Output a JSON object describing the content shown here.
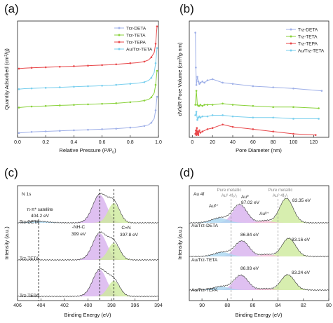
{
  "colors": {
    "deta": "#9fb0e8",
    "teta": "#8ad23c",
    "tepa": "#e8474a",
    "au_teta": "#79cfee",
    "xps_purple": "#d7b0ee",
    "xps_green": "#cdea9b",
    "xps_blue": "#a9d6f0",
    "xps_pink": "#f1b6d2",
    "xps_env": "#333333"
  },
  "chart_data": [
    {
      "id": "a",
      "panel_label": "(a)",
      "type": "line",
      "xlabel": "Relative Pressure (P/P",
      "xlabel_sub": "0",
      "xlabel_end": ")",
      "ylabel": "Quantity Adsorbed (cm",
      "ylabel_sup": "3",
      "ylabel_end": "/g)",
      "xlim": [
        0.0,
        1.0
      ],
      "x_ticks": [
        "0.0",
        "0.2",
        "0.4",
        "0.6",
        "0.8",
        "1.0"
      ],
      "y_ticks_shown": false,
      "legend_position": "top-right",
      "series": [
        {
          "name": "Trz-DETA",
          "color_key": "deta",
          "offset": 0,
          "x": [
            0.01,
            0.05,
            0.1,
            0.15,
            0.2,
            0.25,
            0.3,
            0.35,
            0.4,
            0.45,
            0.5,
            0.55,
            0.6,
            0.65,
            0.7,
            0.75,
            0.8,
            0.85,
            0.9,
            0.93,
            0.95,
            0.97,
            0.98,
            0.99
          ],
          "y": [
            3,
            4,
            5,
            5.5,
            6,
            6.5,
            7,
            7.5,
            8,
            8.5,
            9,
            9.5,
            10,
            10.5,
            11,
            12,
            13,
            14,
            16,
            18,
            22,
            30,
            45,
            70
          ]
        },
        {
          "name": "Trz-TETA",
          "color_key": "teta",
          "offset": 0,
          "x": [
            0.01,
            0.05,
            0.1,
            0.15,
            0.2,
            0.25,
            0.3,
            0.35,
            0.4,
            0.45,
            0.5,
            0.55,
            0.6,
            0.65,
            0.7,
            0.75,
            0.8,
            0.85,
            0.9,
            0.93,
            0.95,
            0.97,
            0.98,
            0.99
          ],
          "y": [
            50,
            51,
            52,
            52.5,
            53,
            53.5,
            54,
            54.5,
            55,
            55.5,
            56,
            56.5,
            57,
            57.5,
            58,
            59,
            60,
            61,
            63,
            65,
            69,
            77,
            92,
            118
          ]
        },
        {
          "name": "Trz-TEPA",
          "color_key": "tepa",
          "offset": 0,
          "x": [
            0.01,
            0.05,
            0.1,
            0.15,
            0.2,
            0.25,
            0.3,
            0.35,
            0.4,
            0.45,
            0.5,
            0.55,
            0.6,
            0.65,
            0.7,
            0.75,
            0.8,
            0.85,
            0.9,
            0.93,
            0.95,
            0.97,
            0.98,
            0.99
          ],
          "y": [
            122,
            123,
            123.5,
            124,
            124.5,
            125,
            125.5,
            126,
            126.5,
            127,
            127.5,
            128,
            128.5,
            129,
            130,
            131,
            132,
            133,
            135,
            138,
            143,
            152,
            168,
            200
          ]
        },
        {
          "name": "Au/Trz-TETA",
          "color_key": "au_teta",
          "offset": 0,
          "x": [
            0.01,
            0.05,
            0.1,
            0.15,
            0.2,
            0.25,
            0.3,
            0.35,
            0.4,
            0.45,
            0.5,
            0.55,
            0.6,
            0.65,
            0.7,
            0.75,
            0.8,
            0.85,
            0.9,
            0.93,
            0.95,
            0.97,
            0.98,
            0.99
          ],
          "y": [
            84,
            85,
            85.5,
            86,
            86.5,
            87,
            87.5,
            88,
            88.5,
            89,
            89.5,
            90,
            90.5,
            91,
            92,
            93,
            94,
            95,
            97,
            100,
            105,
            115,
            132,
            160
          ]
        }
      ],
      "ylim": [
        -5,
        210
      ]
    },
    {
      "id": "b",
      "panel_label": "(b)",
      "type": "line",
      "xlabel": "Pore Diameter (nm)",
      "ylabel": "dV/dR Pore Volume (cm",
      "ylabel_sup": "3",
      "ylabel_end": "/g·nm)",
      "xlim": [
        -3,
        135
      ],
      "x_ticks": [
        "0",
        "20",
        "40",
        "60",
        "80",
        "100",
        "120"
      ],
      "x_tick_values": [
        0,
        20,
        40,
        60,
        80,
        100,
        120
      ],
      "y_ticks_shown": false,
      "legend_position": "top-right",
      "ylim": [
        0,
        100
      ],
      "series": [
        {
          "name": "Trz-DETA",
          "color_key": "deta",
          "x": [
            3,
            3.5,
            4,
            5,
            6,
            7,
            8,
            10,
            12,
            15,
            20,
            30,
            40,
            60,
            80,
            100,
            128
          ],
          "y": [
            90,
            60,
            45,
            52,
            48,
            46,
            47,
            48,
            47,
            49,
            50,
            47,
            46,
            44,
            43,
            42,
            40
          ]
        },
        {
          "name": "Trz-TETA",
          "color_key": "teta",
          "x": [
            3,
            4,
            5,
            6,
            7,
            8,
            10,
            12,
            15,
            20,
            30,
            40,
            60,
            80,
            100,
            125
          ],
          "y": [
            28,
            40,
            28,
            27,
            27,
            28,
            27,
            28,
            28,
            28,
            29,
            28,
            27,
            26,
            26,
            25
          ]
        },
        {
          "name": "Trz-TEPA",
          "color_key": "tepa",
          "x": [
            3,
            3.5,
            4,
            4.5,
            5,
            5.5,
            6,
            7,
            8,
            10,
            15,
            20,
            30,
            40,
            60,
            80,
            100,
            122
          ],
          "y": [
            3,
            6,
            2,
            8,
            3,
            5,
            2,
            6,
            4,
            5,
            7,
            8,
            11,
            9,
            7,
            5,
            3,
            2
          ]
        },
        {
          "name": "Au/Trz-TETA",
          "color_key": "au_teta",
          "x": [
            3,
            4,
            5,
            6,
            7,
            8,
            10,
            15,
            20,
            30,
            40,
            60,
            80,
            100,
            125
          ],
          "y": [
            19,
            22,
            15,
            17,
            18,
            17,
            18,
            18,
            19,
            19,
            18,
            17,
            17,
            16,
            16
          ]
        }
      ]
    },
    {
      "id": "c",
      "panel_label": "(c)",
      "type": "area",
      "inner_title": "N 1s",
      "xlabel": "Binding Energy (eV)",
      "ylabel": "Intensity (a.u.)",
      "xlim": [
        406,
        394
      ],
      "x_ticks": [
        "406",
        "404",
        "402",
        "400",
        "398",
        "396",
        "394"
      ],
      "x_tick_values": [
        406,
        404,
        402,
        400,
        398,
        396,
        394
      ],
      "samples": [
        "Trz-DETA",
        "Trz-TETA",
        "Trz-TEPA"
      ],
      "peaks": [
        {
          "name": "-NH-C",
          "center_ev": 399.0,
          "label": "399 eV",
          "color_key": "xps_purple"
        },
        {
          "name": "C=N",
          "center_ev": 397.8,
          "label": "397.8 eV",
          "color_key": "xps_green"
        },
        {
          "name": "π-π* satellite",
          "center_ev": 404.2,
          "label": "404.2 eV",
          "color_key": "xps_blue"
        }
      ],
      "annotations": {
        "sat_title": "π-π* satellite",
        "sat_value": "404.2 eV",
        "nhc_title": "-NH-C",
        "nhc_value": "399 eV",
        "cn_title": "C=N",
        "cn_value": "397.8 eV"
      },
      "dashed_lines_ev": [
        404.2,
        399.0,
        397.8
      ]
    },
    {
      "id": "d",
      "panel_label": "(d)",
      "type": "area",
      "inner_title": "Au 4f",
      "xlabel": "Binding Energy (eV)",
      "ylabel": "Intensity (a.u.)",
      "xlim": [
        91,
        80
      ],
      "x_ticks": [
        "90",
        "88",
        "86",
        "84",
        "82",
        "80"
      ],
      "x_tick_values": [
        90,
        88,
        86,
        84,
        82,
        80
      ],
      "samples": [
        "Au/Trz-DETA",
        "Au/Trz-TETA",
        "Au/Trz-TEPA"
      ],
      "reference_lines": [
        {
          "label": "Pure metallic",
          "sub": "Au⁰ 4f₅/₂",
          "ev": 87.7
        },
        {
          "label": "Pure metallic",
          "sub": "Au⁰ 4f₇/₂",
          "ev": 84.0
        }
      ],
      "peak_labels": {
        "deta": {
          "a": "Au⁰",
          "a_ev": "87.02 eV",
          "b": "83.35 eV",
          "delta1": "Auᵟ⁺",
          "delta2": "Auᵟ⁺"
        },
        "teta": {
          "a": "86.84 eV",
          "b": "83.16 eV"
        },
        "tepa": {
          "a": "86.93 eV",
          "b": "83.24 eV"
        }
      },
      "peak_centers_ev": {
        "deta": [
          87.02,
          83.35
        ],
        "teta": [
          86.84,
          83.16
        ],
        "tepa": [
          86.93,
          83.24
        ]
      }
    }
  ]
}
